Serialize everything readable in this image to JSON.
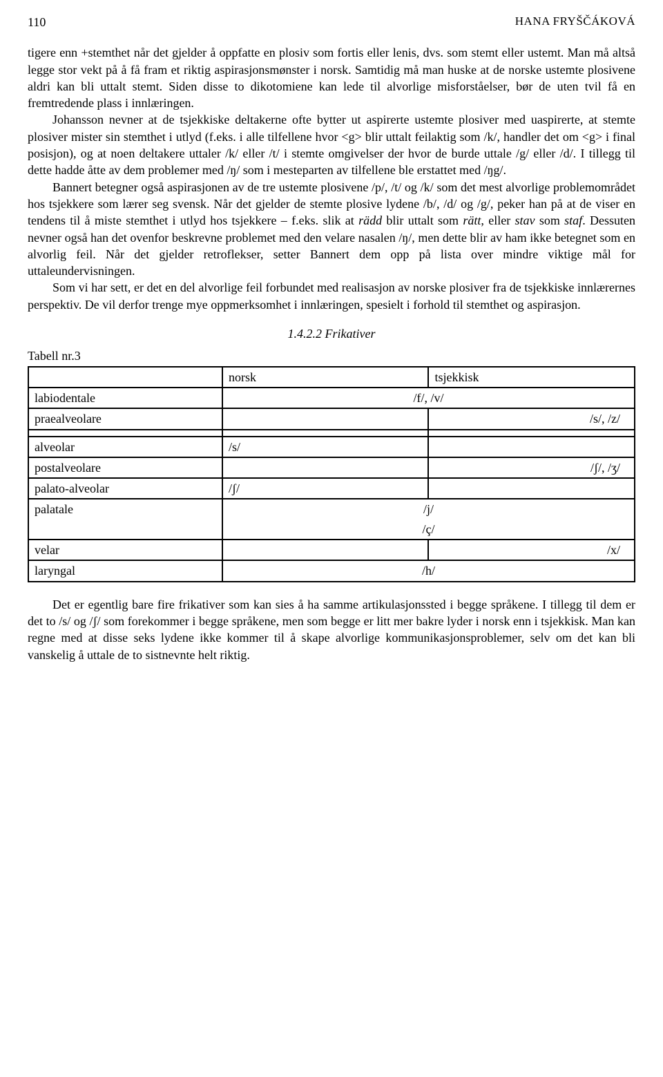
{
  "header": {
    "page_number": "110",
    "author": "HANA FRYŠČÁKOVÁ"
  },
  "paragraphs": {
    "p1": "tigere enn +stemthet når det gjelder å oppfatte en plosiv som fortis eller lenis, dvs. som stemt eller ustemt. Man må altså legge stor vekt på å få fram et riktig aspirasjonsmønster i norsk. Samtidig må man huske at de norske ustemte plosivene aldri kan bli uttalt stemt. Siden disse to dikotomiene kan lede til alvorlige misforståelser, bør de uten tvil få en fremtredende plass i innlæringen.",
    "p2": "Johansson nevner at de tsjekkiske deltakerne ofte bytter ut aspirerte ustemte plosiver med uaspirerte, at stemte plosiver mister sin stemthet i utlyd (f.eks. i alle tilfellene hvor <g> blir uttalt feilaktig som /k/, handler det om <g> i final posisjon), og at noen deltakere uttaler /k/ eller /t/ i stemte omgivelser der hvor de burde uttale /g/ eller /d/. I tillegg til dette hadde åtte av dem problemer med /ŋ/ som i mesteparten av tilfellene ble erstattet med /ŋg/.",
    "p3a": "Bannert betegner også aspirasjonen av de tre ustemte plosivene /p/, /t/ og /k/ som det mest alvorlige problemområdet hos tsjekkere som lærer seg svensk. Når det gjelder de stemte plosive lydene /b/, /d/ og /g/, peker han på at de viser en tendens til å miste stemthet i utlyd hos tsjekkere – f.eks. slik at ",
    "p3_radd": "rädd",
    "p3b": " blir uttalt som ",
    "p3_ratt": "rätt",
    "p3c": ", eller ",
    "p3_stav": "stav",
    "p3d": " som ",
    "p3_staf": "staf",
    "p3e": ". Dessuten nevner også han det ovenfor beskrevne problemet med den velare nasalen /ŋ/, men dette blir av ham ikke betegnet som en alvorlig feil. Når det gjelder retroflekser, setter Bannert dem opp på lista over mindre viktige mål for uttaleundervisningen.",
    "p4": "Som vi har sett, er det en del alvorlige feil forbundet med realisasjon av norske plosiver fra de tsjekkiske innlærernes perspektiv. De vil derfor trenge mye oppmerksomhet i innlæringen, spesielt i forhold til stemthet og aspirasjon.",
    "p5": "Det er egentlig bare fire frikativer som kan sies å ha samme artikulasjonssted i begge språkene. I tillegg til dem er det to /s/ og /ʃ/ som forekommer i begge språkene, men som begge er litt mer bakre lyder i norsk enn i tsjekkisk. Man kan regne med at disse seks lydene ikke kommer til å skape alvorlige kommunikasjonsproblemer, selv om det kan bli vanskelig å uttale de to sistnevnte helt riktig."
  },
  "section": {
    "number": "1.4.2.2",
    "title": "Frikativer"
  },
  "table": {
    "label": "Tabell nr.3",
    "header_norsk": "norsk",
    "header_tsjekkisk": "tsjekkisk",
    "rows": {
      "labiodentale_label": "labiodentale",
      "labiodentale_val": "/f/, /v/",
      "praealveolare_label": "praealveolare",
      "praealveolare_val": "/s/, /z/",
      "alveolar_label": "alveolar",
      "alveolar_val": "/s/",
      "postalveolare_label": "postalveolare",
      "postalveolare_val": "/ʃ/, /ʒ/",
      "palatoalveolar_label": "palato-alveolar",
      "palatoalveolar_val": "/ʃ/",
      "palatale_label": "palatale",
      "palatale_val1": "/j/",
      "palatale_val2": "/ç/",
      "velar_label": "velar",
      "velar_val": "/x/",
      "laryngal_label": "laryngal",
      "laryngal_val": "/h/"
    }
  }
}
